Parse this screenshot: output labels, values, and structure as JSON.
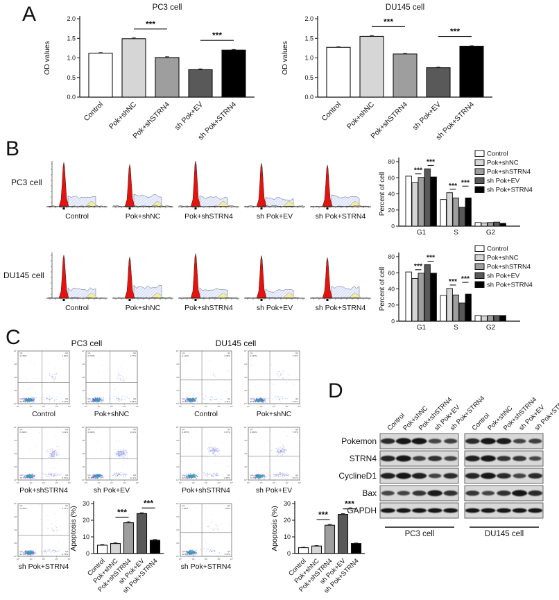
{
  "colors": {
    "series_fills": [
      "#ffffff",
      "#d6d6d6",
      "#9e9e9e",
      "#595959",
      "#000000"
    ],
    "bar_border": "#111111",
    "hist_g1_red": "#e8120c",
    "hist_s_fill": "#eef1fb",
    "hist_s_hatch": "#9fb0e8",
    "hist_g2_yellow": "#f2eda0",
    "scatter_dot_blue": "#4b5fd6",
    "scatter_core_teal": "#2fae93",
    "blot_bg": "#d8d8d8",
    "blot_band": "#161616"
  },
  "conditions": [
    "Control",
    "Pok+shNC",
    "Pok+shSTRN4",
    "sh Pok+EV",
    "sh Pok+STRN4"
  ],
  "panel_a": {
    "label": "A"
  },
  "panel_b": {
    "label": "B",
    "row_labels": [
      "PC3 cell",
      "DU145 cell"
    ]
  },
  "panel_c": {
    "label": "C",
    "titles": [
      "PC3 cell",
      "DU145 cell"
    ]
  },
  "panel_d": {
    "label": "D"
  },
  "chart_data": [
    {
      "id": "chart-a1",
      "type": "bar",
      "title": "PC3 cell",
      "ylabel": "OD values",
      "ylim": [
        0,
        2.0
      ],
      "yticks": [
        "0.0",
        "0.5",
        "1.0",
        "1.5",
        "2.0"
      ],
      "categories": [
        "Control",
        "Pok+shNC",
        "Pok+shSTRN4",
        "sh Pok+EV",
        "sh Pok+STRN4"
      ],
      "values": [
        1.12,
        1.49,
        1.01,
        0.7,
        1.2
      ],
      "errors": [
        0.015,
        0.02,
        0.02,
        0.02,
        0.015
      ],
      "sig": [
        {
          "a": 1,
          "b": 2,
          "text": "***"
        },
        {
          "a": 3,
          "b": 4,
          "text": "***"
        }
      ]
    },
    {
      "id": "chart-a2",
      "type": "bar",
      "title": "DU145 cell",
      "ylabel": "OD values",
      "ylim": [
        0,
        2.0
      ],
      "yticks": [
        "0.0",
        "0.5",
        "1.0",
        "1.5",
        "2.0"
      ],
      "categories": [
        "Control",
        "Pok+shNC",
        "Pok+shSTRN4",
        "sh Pok+EV",
        "sh Pok+STRN4"
      ],
      "values": [
        1.27,
        1.55,
        1.1,
        0.75,
        1.3
      ],
      "errors": [
        0.015,
        0.02,
        0.015,
        0.015,
        0.01
      ],
      "sig": [
        {
          "a": 1,
          "b": 2,
          "text": "***"
        },
        {
          "a": 3,
          "b": 4,
          "text": "***"
        }
      ]
    },
    {
      "id": "chart-b1",
      "type": "grouped-bar",
      "ylabel": "Percent of cell",
      "ylim": [
        0,
        80
      ],
      "yticks": [
        "0",
        "20",
        "40",
        "60",
        "80"
      ],
      "categories": [
        "G1",
        "S",
        "G2"
      ],
      "legend": true,
      "series": [
        {
          "name": "Control",
          "values": [
            62,
            33,
            4.5
          ]
        },
        {
          "name": "Pok+shNC",
          "values": [
            54,
            41.5,
            4.0
          ]
        },
        {
          "name": "Pok+shSTRN4",
          "values": [
            60.5,
            35,
            4.5
          ]
        },
        {
          "name": "sh Pok+EV",
          "values": [
            71,
            23.5,
            5.0
          ]
        },
        {
          "name": "sh Pok+STRN4",
          "values": [
            61,
            35,
            3.5
          ]
        }
      ],
      "sig": [
        {
          "cat": 0,
          "a": 1,
          "b": 2,
          "text": "***",
          "lift": 0
        },
        {
          "cat": 0,
          "a": 3,
          "b": 4,
          "text": "***",
          "lift": 0
        },
        {
          "cat": 1,
          "a": 1,
          "b": 2,
          "text": "***",
          "lift": 0
        },
        {
          "cat": 1,
          "a": 3,
          "b": 4,
          "text": "***",
          "lift": 12
        }
      ]
    },
    {
      "id": "chart-b2",
      "type": "grouped-bar",
      "ylabel": "Percent of cell",
      "ylim": [
        0,
        80
      ],
      "yticks": [
        "0",
        "20",
        "40",
        "60",
        "80"
      ],
      "categories": [
        "G1",
        "S",
        "G2"
      ],
      "legend": true,
      "series": [
        {
          "name": "Control",
          "values": [
            61,
            32,
            7.0
          ]
        },
        {
          "name": "Pok+shNC",
          "values": [
            53,
            40.5,
            6.5
          ]
        },
        {
          "name": "Pok+shSTRN4",
          "values": [
            59.5,
            32.5,
            7.0
          ]
        },
        {
          "name": "sh Pok+EV",
          "values": [
            70,
            22.5,
            7.0
          ]
        },
        {
          "name": "sh Pok+STRN4",
          "values": [
            59.5,
            33.5,
            7.0
          ]
        }
      ],
      "sig": [
        {
          "cat": 0,
          "a": 1,
          "b": 2,
          "text": "***",
          "lift": 0
        },
        {
          "cat": 0,
          "a": 3,
          "b": 4,
          "text": "***",
          "lift": 0
        },
        {
          "cat": 1,
          "a": 1,
          "b": 2,
          "text": "***",
          "lift": 0
        },
        {
          "cat": 1,
          "a": 3,
          "b": 4,
          "text": "***",
          "lift": 12
        }
      ]
    },
    {
      "id": "chart-c1",
      "type": "bar",
      "title": "",
      "ylabel": "Apoptosis (%)",
      "ylim": [
        0,
        30
      ],
      "yticks": [
        "0",
        "10",
        "20",
        "30"
      ],
      "categories": [
        "Control",
        "Pok+shNC",
        "Pok+shSTRN4",
        "sh Pok+EV",
        "sh Pok+STRN4"
      ],
      "values": [
        5,
        6,
        18.5,
        24,
        8
      ],
      "errors": [
        0.4,
        0.4,
        0.6,
        0.5,
        0.4
      ],
      "sig": [
        {
          "a": 1,
          "b": 2,
          "text": "***"
        },
        {
          "a": 3,
          "b": 4,
          "text": "***"
        }
      ]
    },
    {
      "id": "chart-c2",
      "type": "bar",
      "title": "",
      "ylabel": "Apoptosis (%)",
      "ylim": [
        0,
        30
      ],
      "yticks": [
        "0",
        "10",
        "20",
        "30"
      ],
      "categories": [
        "Control",
        "Pok+shNC",
        "Pok+shSTRN4",
        "sh Pok+EV",
        "sh Pok+STRN4"
      ],
      "values": [
        3.5,
        4.5,
        17,
        23.5,
        6
      ],
      "errors": [
        0.3,
        0.3,
        0.5,
        0.5,
        0.3
      ],
      "sig": [
        {
          "a": 1,
          "b": 2,
          "text": "***"
        },
        {
          "a": 3,
          "b": 4,
          "text": "***"
        }
      ]
    }
  ],
  "histograms": {
    "pc3": [
      {
        "label": "Control",
        "s": 0.18
      },
      {
        "label": "Pok+shNC",
        "s": 0.26
      },
      {
        "label": "Pok+shSTRN4",
        "s": 0.18
      },
      {
        "label": "sh Pok+EV",
        "s": 0.1
      },
      {
        "label": "sh Pok+STRN4",
        "s": 0.22
      }
    ],
    "du145": [
      {
        "label": "Control",
        "s": 0.16
      },
      {
        "label": "Pok+shNC",
        "s": 0.28
      },
      {
        "label": "Pok+shSTRN4",
        "s": 0.16
      },
      {
        "label": "sh Pok+EV",
        "s": 0.1
      },
      {
        "label": "sh Pok+STRN4",
        "s": 0.24
      }
    ]
  },
  "scatters": {
    "pc3": {
      "vx": 0.47,
      "hy": 0.6,
      "plots": [
        {
          "label": "Control",
          "q1": "0.150%",
          "q2": "1.92%",
          "q3": "4.14%",
          "q4": "93.8%"
        },
        {
          "label": "Pok+shNC",
          "q1": "0.270%",
          "q2": "1.77%",
          "q3": "3.68%",
          "q4": "94.3%"
        },
        {
          "label": "Pok+shSTRN4",
          "q1": "0.390%",
          "q2": "9.11%",
          "q3": "9.75%",
          "q4": "79.7%"
        },
        {
          "label": "sh Pok+EV",
          "q1": "0.330%",
          "q2": "13.2%",
          "q3": "11.1%",
          "q4": "75.4%"
        },
        {
          "label": "sh Pok+STRN4",
          "q1": "0.130%",
          "q2": "1.21%",
          "q3": "6.79%",
          "q4": "91.9%"
        }
      ]
    },
    "du145": {
      "vx": 0.42,
      "hy": 0.55,
      "plots": [
        {
          "label": "Control",
          "q1": "0.114%",
          "q2": "0.35%",
          "q3": "3.11%",
          "q4": "96.5%"
        },
        {
          "label": "Pok+shNC",
          "q1": "0.160%",
          "q2": "1.37%",
          "q3": "3.27%",
          "q4": "95.2%"
        },
        {
          "label": "Pok+shSTRN4",
          "q1": "0.957%",
          "q2": "8.37%",
          "q3": "8.65%",
          "q4": "82.0%"
        },
        {
          "label": "sh Pok+EV",
          "q1": "0.350%",
          "q2": "7.67%",
          "q3": "15.7%",
          "q4": "72.7%"
        },
        {
          "label": "sh Pok+STRN4",
          "q1": "1.28%",
          "q2": "1.29%",
          "q3": "4.79%",
          "q4": "92.6%"
        }
      ]
    }
  },
  "blots": {
    "group_labels": [
      "PC3 cell",
      "DU145 cell"
    ],
    "rows": [
      {
        "label": "Pokemon",
        "pc3": [
          0.8,
          1.0,
          1.0,
          0.55,
          0.6
        ],
        "du145": [
          0.8,
          1.0,
          0.95,
          0.5,
          0.6
        ]
      },
      {
        "label": "STRN4",
        "pc3": [
          0.85,
          1.0,
          0.6,
          0.75,
          0.55
        ],
        "du145": [
          0.9,
          1.0,
          0.7,
          0.7,
          0.45
        ]
      },
      {
        "label": "CyclineD1",
        "pc3": [
          0.9,
          1.0,
          0.9,
          0.5,
          0.8
        ],
        "du145": [
          0.85,
          1.0,
          0.8,
          0.55,
          0.8
        ]
      },
      {
        "label": "Bax",
        "pc3": [
          0.55,
          0.5,
          0.7,
          0.95,
          0.75
        ],
        "du145": [
          0.7,
          0.5,
          0.75,
          1.0,
          0.8
        ]
      },
      {
        "label": "GAPDH",
        "pc3": [
          1.0,
          1.0,
          1.0,
          1.0,
          1.0
        ],
        "du145": [
          1.0,
          1.0,
          1.0,
          1.0,
          1.0
        ]
      }
    ]
  }
}
